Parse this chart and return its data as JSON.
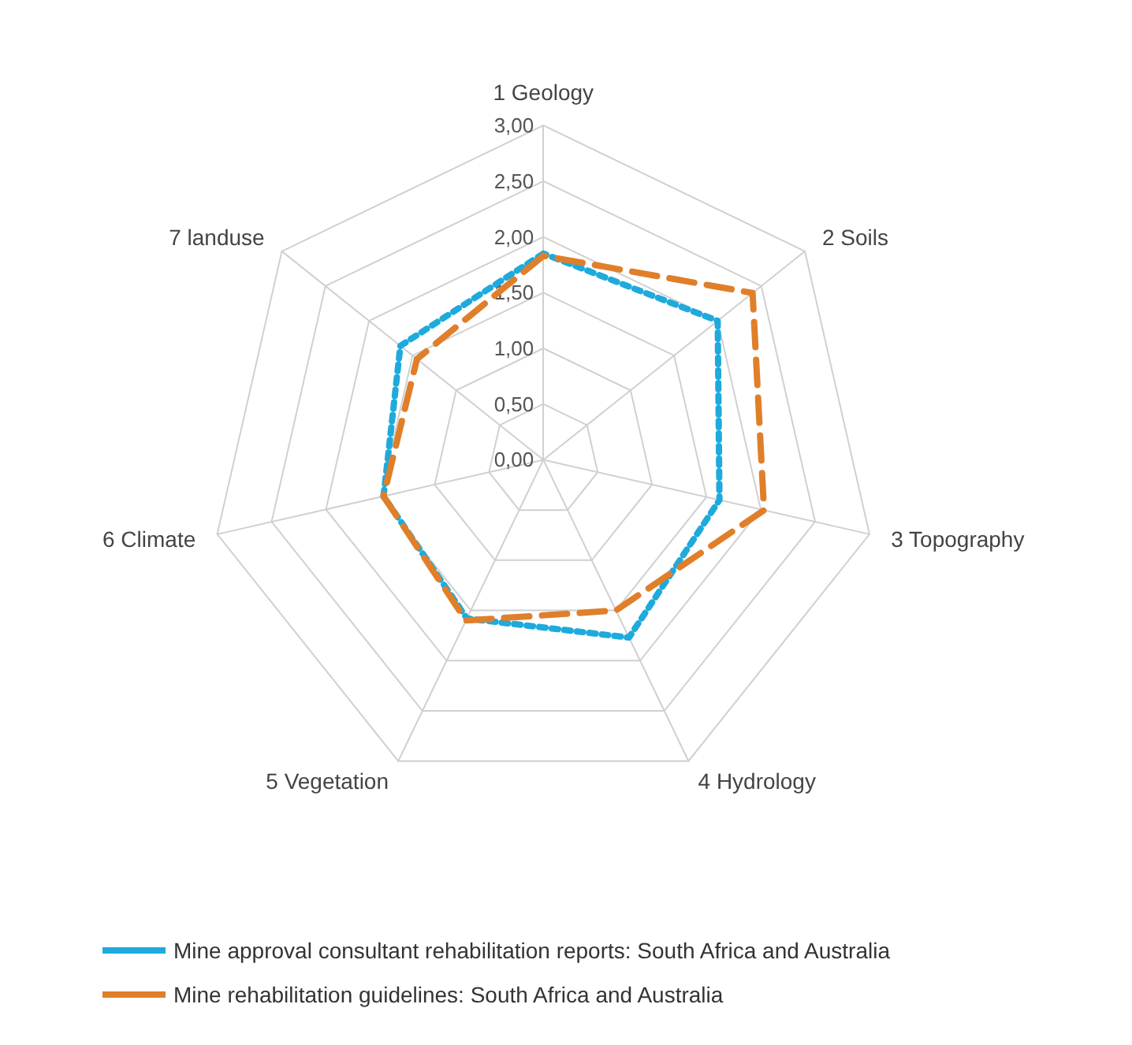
{
  "chart_data": {
    "type": "radar",
    "categories": [
      "1 Geology",
      "2 Soils",
      "3 Topography",
      "4 Hydrology",
      "5 Vegetation",
      "6 Climate",
      "7 landuse"
    ],
    "series": [
      {
        "name": "Mine approval consultant rehabilitation reports: South Africa and Australia",
        "color": "#1eaadc",
        "line_style": "dotted",
        "values": [
          1.85,
          2.0,
          1.62,
          1.77,
          1.58,
          1.47,
          1.64
        ]
      },
      {
        "name": "Mine rehabilitation guidelines: South Africa and Australia",
        "color": "#e07f2a",
        "line_style": "dashed",
        "values": [
          1.83,
          2.4,
          2.03,
          1.5,
          1.6,
          1.47,
          1.45
        ]
      }
    ],
    "ylim": [
      0,
      3
    ],
    "yticks": [
      {
        "value": 0,
        "label": "0,00"
      },
      {
        "value": 0.5,
        "label": "0,50"
      },
      {
        "value": 1,
        "label": "1,00"
      },
      {
        "value": 1.5,
        "label": "1,50"
      },
      {
        "value": 2,
        "label": "2,00"
      },
      {
        "value": 2.5,
        "label": "2,50"
      },
      {
        "value": 3,
        "label": "3,00"
      }
    ],
    "grid": true,
    "marker": "none",
    "legend": "bottom"
  }
}
